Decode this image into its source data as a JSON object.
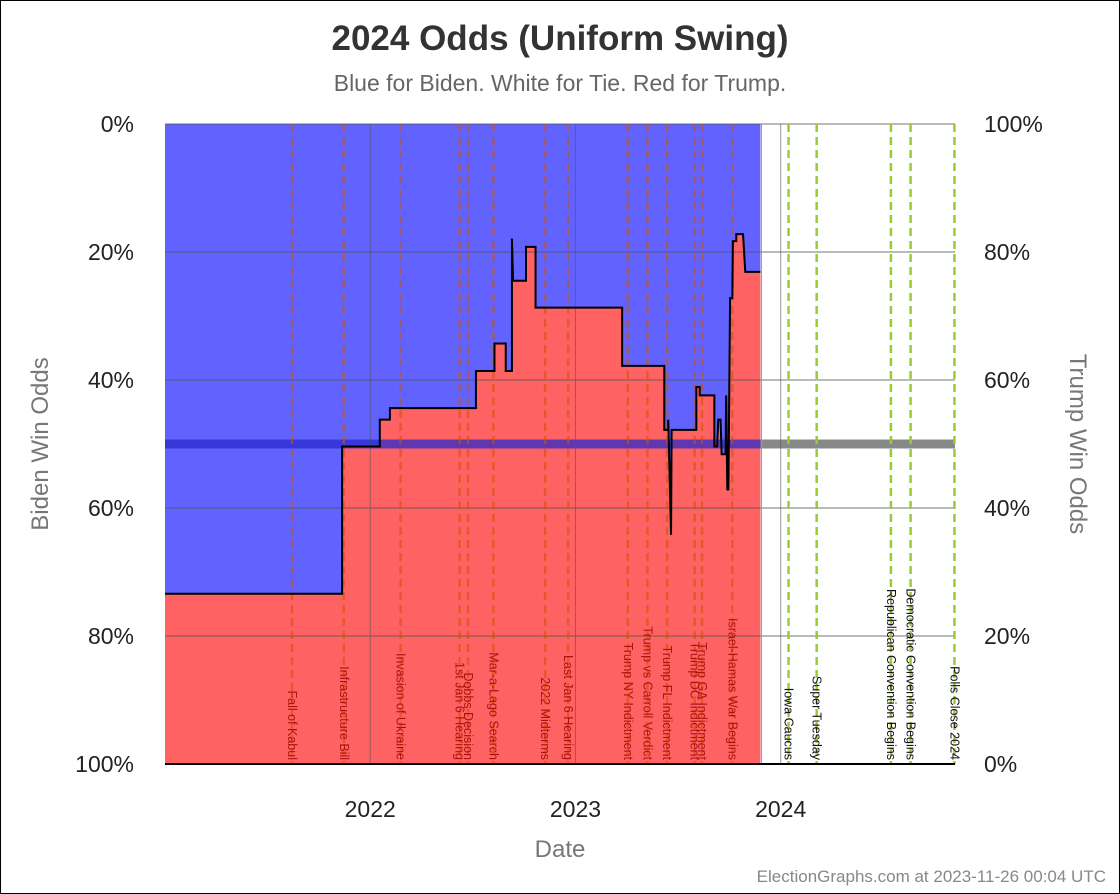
{
  "chart_data": {
    "type": "area",
    "title": "2024 Odds (Uniform Swing)",
    "subtitle": "Blue for Biden. White for Tie. Red for Trump.",
    "xlabel": "Date",
    "ylabel_left": "Biden Win Odds",
    "ylabel_right": "Trump Win Odds",
    "x_range": [
      "2021-01-01",
      "2024-11-06"
    ],
    "x_ticks": [
      {
        "date": "2022-01-01",
        "label": "2022"
      },
      {
        "date": "2023-01-01",
        "label": "2023"
      },
      {
        "date": "2024-01-01",
        "label": "2024"
      }
    ],
    "y_left_ticks": [
      "0%",
      "20%",
      "40%",
      "60%",
      "80%",
      "100%"
    ],
    "y_right_ticks": [
      "100%",
      "80%",
      "60%",
      "40%",
      "20%",
      "0%"
    ],
    "colors": {
      "biden": "#6262ff",
      "trump": "#ff6262",
      "past_event": "#cc5500",
      "future_event": "#99cc33",
      "line": "#000000",
      "even_line_biden": "#2a2acc",
      "even_line_trump": "#888888"
    },
    "series": [
      {
        "points": [
          [
            "2021-01-01",
            73.4
          ],
          [
            "2021-11-12",
            73.4
          ],
          [
            "2021-11-12",
            50.4
          ],
          [
            "2022-01-18",
            50.4
          ],
          [
            "2022-01-18",
            46.2
          ],
          [
            "2022-02-05",
            46.2
          ],
          [
            "2022-02-05",
            44.4
          ],
          [
            "2022-07-08",
            44.4
          ],
          [
            "2022-07-08",
            38.6
          ],
          [
            "2022-08-10",
            38.6
          ],
          [
            "2022-08-10",
            34.3
          ],
          [
            "2022-08-30",
            34.3
          ],
          [
            "2022-08-30",
            38.6
          ],
          [
            "2022-09-10",
            38.6
          ],
          [
            "2022-09-10",
            17.9
          ],
          [
            "2022-09-12",
            24.5
          ],
          [
            "2022-10-05",
            24.5
          ],
          [
            "2022-10-05",
            19.2
          ],
          [
            "2022-10-22",
            19.2
          ],
          [
            "2022-10-22",
            28.7
          ],
          [
            "2023-03-25",
            28.7
          ],
          [
            "2023-03-25",
            37.8
          ],
          [
            "2023-06-08",
            37.8
          ],
          [
            "2023-06-08",
            47.8
          ],
          [
            "2023-06-15",
            47.8
          ],
          [
            "2023-06-15",
            46.2
          ],
          [
            "2023-06-20",
            64.2
          ],
          [
            "2023-06-21",
            47.8
          ],
          [
            "2023-08-04",
            47.8
          ],
          [
            "2023-08-04",
            41.1
          ],
          [
            "2023-08-10",
            41.1
          ],
          [
            "2023-08-10",
            42.4
          ],
          [
            "2023-09-05",
            42.4
          ],
          [
            "2023-09-05",
            50.4
          ],
          [
            "2023-09-10",
            50.4
          ],
          [
            "2023-09-12",
            46.2
          ],
          [
            "2023-09-16",
            46.2
          ],
          [
            "2023-09-18",
            51.6
          ],
          [
            "2023-09-25",
            51.6
          ],
          [
            "2023-09-26",
            42.4
          ],
          [
            "2023-09-28",
            57.1
          ],
          [
            "2023-09-30",
            57.1
          ],
          [
            "2023-10-03",
            27.2
          ],
          [
            "2023-10-07",
            27.2
          ],
          [
            "2023-10-08",
            18.3
          ],
          [
            "2023-10-14",
            18.3
          ],
          [
            "2023-10-14",
            17.2
          ],
          [
            "2023-10-26",
            17.2
          ],
          [
            "2023-10-30",
            23.1
          ],
          [
            "2023-11-26",
            23.1
          ]
        ]
      }
    ],
    "last_data_date": "2023-11-26",
    "events": [
      {
        "date": "2021-08-15",
        "label": "Fall of Kabul",
        "status": "past"
      },
      {
        "date": "2021-11-15",
        "label": "Infrastructure Bill",
        "status": "past"
      },
      {
        "date": "2022-02-24",
        "label": "Invasion of Ukraine",
        "status": "past"
      },
      {
        "date": "2022-06-09",
        "label": "1st Jan 6 Hearing",
        "status": "past"
      },
      {
        "date": "2022-06-24",
        "label": "Dobbs Decision",
        "status": "past"
      },
      {
        "date": "2022-08-08",
        "label": "Mar-a-Lago Search",
        "status": "past"
      },
      {
        "date": "2022-11-08",
        "label": "2022 Midterms",
        "status": "past"
      },
      {
        "date": "2022-12-19",
        "label": "Last Jan 6 Hearing",
        "status": "past"
      },
      {
        "date": "2023-04-04",
        "label": "Trump NY Indictment",
        "status": "past"
      },
      {
        "date": "2023-05-09",
        "label": "Trump vs Carroll Verdict",
        "status": "past"
      },
      {
        "date": "2023-06-13",
        "label": "Trump FL Indictment",
        "status": "past"
      },
      {
        "date": "2023-08-01",
        "label": "Trump DC Indictment",
        "status": "past"
      },
      {
        "date": "2023-08-14",
        "label": "Trump GA Indictment",
        "status": "past"
      },
      {
        "date": "2023-10-07",
        "label": "Israel-Hamas War Begins",
        "status": "past"
      },
      {
        "date": "2024-01-15",
        "label": "Iowa Caucus",
        "status": "future"
      },
      {
        "date": "2024-03-05",
        "label": "Super Tuesday",
        "status": "future"
      },
      {
        "date": "2024-07-15",
        "label": "Republican Convention Begins",
        "status": "future"
      },
      {
        "date": "2024-08-19",
        "label": "Democratic Convention Begins",
        "status": "future"
      },
      {
        "date": "2024-11-05",
        "label": "Polls Close 2024",
        "status": "future"
      }
    ]
  },
  "footer": {
    "credit": "ElectionGraphs.com at 2023-11-26 00:04 UTC"
  }
}
